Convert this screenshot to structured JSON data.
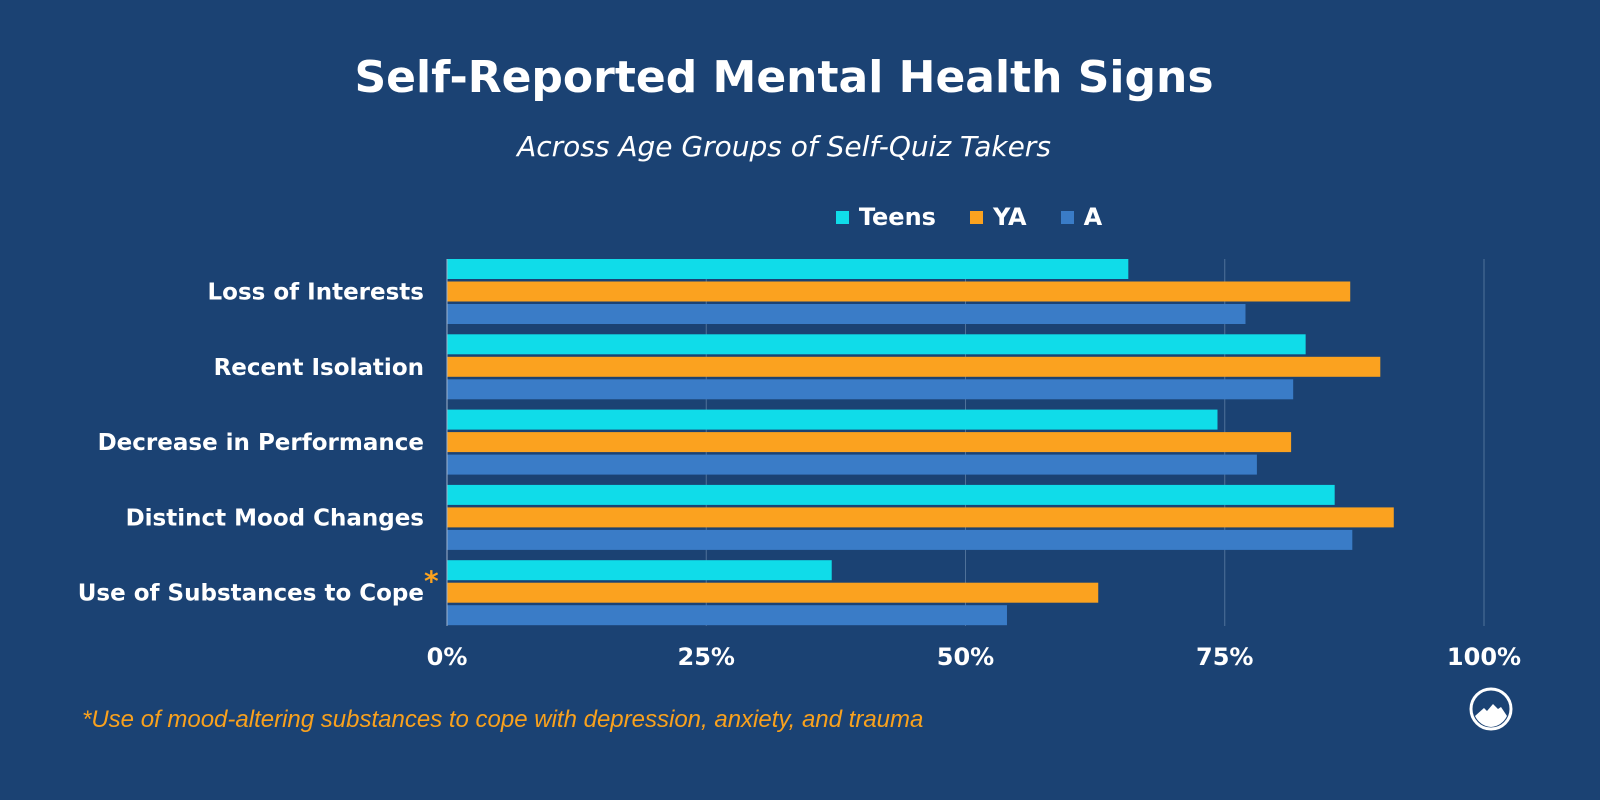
{
  "chart_data": {
    "type": "bar",
    "orientation": "horizontal",
    "title": "Self-Reported Mental Health Signs",
    "subtitle": "Across Age Groups of Self-Quiz Takers",
    "categories": [
      "Loss of Interests",
      "Recent Isolation",
      "Decrease in Performance",
      "Distinct Mood Changes",
      "Use of Substances to Cope"
    ],
    "category_marks": [
      "",
      "",
      "",
      "",
      "*"
    ],
    "series": [
      {
        "name": "Teens",
        "color": "#10dce9",
        "values": [
          65.7,
          82.8,
          74.3,
          85.6,
          37.1
        ]
      },
      {
        "name": "YA",
        "color": "#fba21f",
        "values": [
          87.1,
          90.0,
          81.4,
          91.3,
          62.8
        ]
      },
      {
        "name": "A",
        "color": "#3a7cc7",
        "values": [
          77.0,
          81.6,
          78.1,
          87.3,
          54.0
        ]
      }
    ],
    "xlim": [
      0,
      100
    ],
    "xticks": [
      "0%",
      "25%",
      "50%",
      "75%",
      "100%"
    ],
    "grid": "vertical",
    "legend_position": "top",
    "footnote": "*Use of mood-altering substances to cope with depression, anxiety, and trauma",
    "background": "#1b4273",
    "logo": "mountain-circle-logo"
  }
}
